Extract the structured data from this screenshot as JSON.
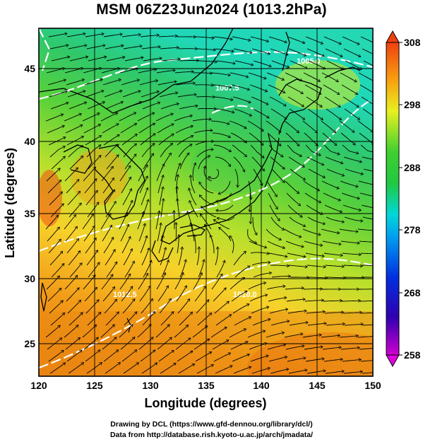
{
  "title": "MSM 06Z23Jun2024 (1013.2hPa)",
  "x_axis": {
    "label": "Longitude (degrees)",
    "ticks": [
      120,
      125,
      130,
      135,
      140,
      145,
      150
    ],
    "range": [
      120,
      150
    ]
  },
  "y_axis": {
    "label": "Latitude  (degrees)",
    "ticks": [
      25,
      30,
      35,
      40,
      45
    ],
    "range": [
      22.4,
      47.6
    ]
  },
  "colorbar": {
    "min": 258,
    "max": 308,
    "ticks": [
      308,
      298,
      288,
      278,
      268,
      258
    ]
  },
  "isobar_labels": [
    "1005.0",
    "1007.5",
    "1010.0",
    "1012.5"
  ],
  "credits": [
    "Drawing by DCL (https://www.gfd-dennou.org/library/dcl/)",
    "Data from http://database.rish.kyoto-u.ac.jp/arch/jmadata/"
  ],
  "colors": {
    "land_outline": "#000000",
    "isobar": "#ffffff",
    "grid": "#000000"
  }
}
